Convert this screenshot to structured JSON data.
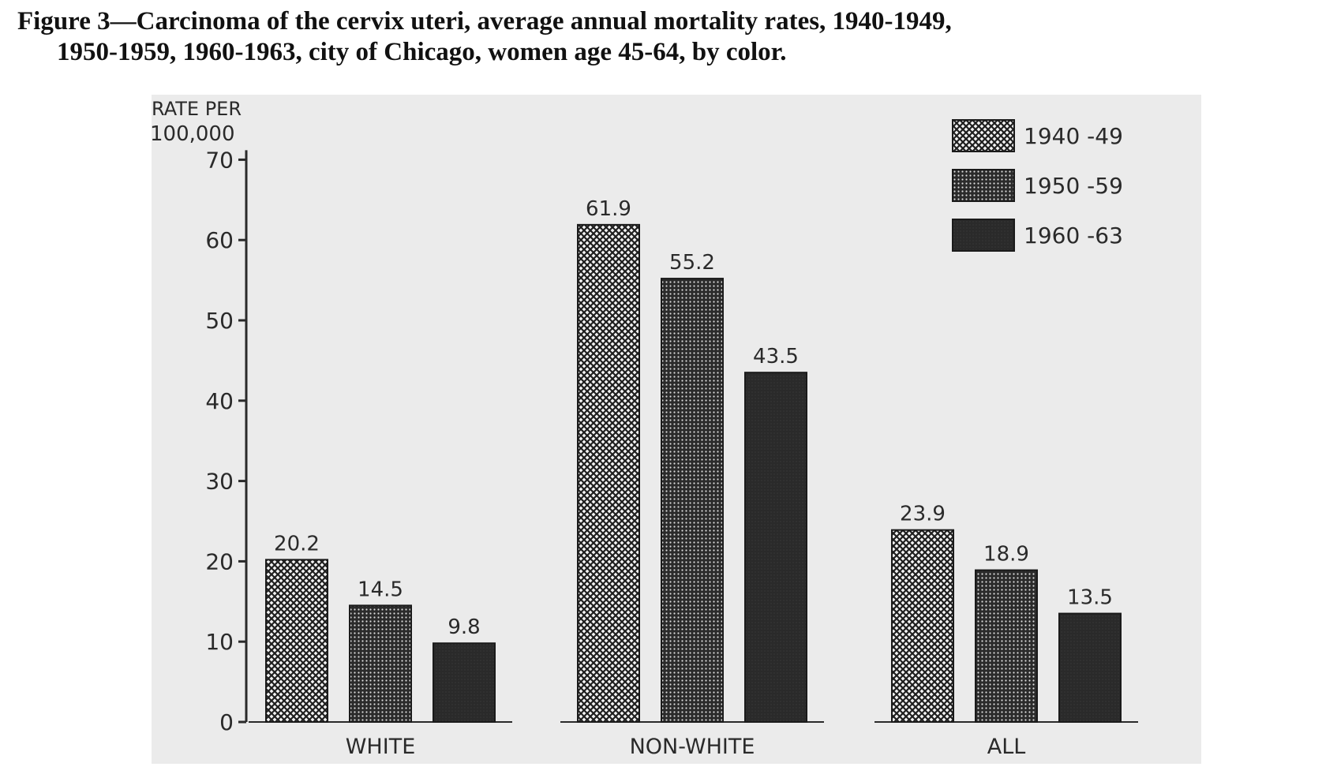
{
  "figure": {
    "caption_line1": "Figure 3—Carcinoma of the cervix uteri, average annual mortality rates, 1940-1949,",
    "caption_line2": "1950-1959, 1960-1963, city of Chicago, women age 45-64, by color."
  },
  "colors": {
    "panel_background": "#ebebeb",
    "ink": "#2a2a2a",
    "pattern_1940_49": "crosshatch",
    "pattern_1950_59": "fine-dot",
    "pattern_1960_63": "solid-dark"
  },
  "chart_data": {
    "type": "bar",
    "title": "Figure 3—Carcinoma of the cervix uteri, average annual mortality rates, 1940-1949, 1950-1959, 1960-1963, city of Chicago, women age 45-64, by color.",
    "ylabel": "RATE PER 100,000",
    "ylabel_line1": "RATE PER",
    "ylabel_line2": "100,000",
    "xlabel": "",
    "ylim": [
      0,
      70
    ],
    "yticks": [
      0,
      10,
      20,
      30,
      40,
      50,
      60,
      70
    ],
    "grid": false,
    "legend_position": "top-right",
    "categories": [
      "WHITE",
      "NON-WHITE",
      "ALL"
    ],
    "series": [
      {
        "name": "1940 -49",
        "values": [
          20.2,
          61.9,
          23.9
        ],
        "labels": [
          "20.2",
          "61.9",
          "23.9"
        ],
        "pattern": "crosshatch"
      },
      {
        "name": "1950 -59",
        "values": [
          14.5,
          55.2,
          18.9
        ],
        "labels": [
          "14.5",
          "55.2",
          "18.9"
        ],
        "pattern": "fine-dot"
      },
      {
        "name": "1960 -63",
        "values": [
          9.8,
          43.5,
          13.5
        ],
        "labels": [
          "9.8",
          "43.5",
          "13.5"
        ],
        "pattern": "solid-dark"
      }
    ]
  }
}
